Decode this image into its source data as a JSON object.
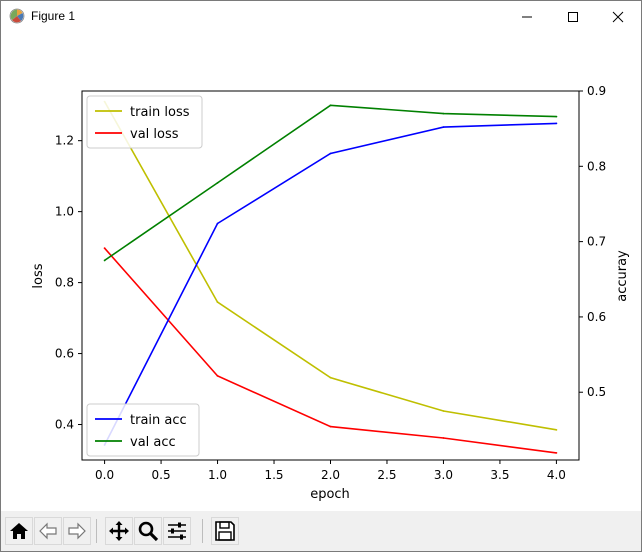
{
  "window": {
    "title": "Figure 1",
    "controls": [
      "minimize",
      "maximize",
      "close"
    ]
  },
  "toolbar": {
    "buttons": [
      {
        "name": "home",
        "icon": "home-icon"
      },
      {
        "name": "back",
        "icon": "back-arrow-icon"
      },
      {
        "name": "forward",
        "icon": "forward-arrow-icon"
      },
      {
        "name": "pan",
        "icon": "move-icon"
      },
      {
        "name": "zoom",
        "icon": "zoom-icon"
      },
      {
        "name": "configure-subplots",
        "icon": "sliders-icon"
      },
      {
        "name": "save",
        "icon": "save-icon"
      }
    ]
  },
  "chart_data": {
    "type": "line",
    "title": "",
    "xlabel": "epoch",
    "ylabel": "loss",
    "y2label": "accuray",
    "x": [
      0,
      1,
      2,
      3,
      4
    ],
    "xticks": [
      "0.0",
      "0.5",
      "1.0",
      "1.5",
      "2.0",
      "2.5",
      "3.0",
      "3.5",
      "4.0"
    ],
    "xlim": [
      -0.2,
      4.2
    ],
    "ylim": [
      0.3,
      1.34
    ],
    "yticks": [
      "0.4",
      "0.6",
      "0.8",
      "1.0",
      "1.2"
    ],
    "y2lim": [
      0.41,
      0.9
    ],
    "y2ticks": [
      "0.5",
      "0.6",
      "0.7",
      "0.8",
      "0.9"
    ],
    "series_left": [
      {
        "name": "train loss",
        "color": "#bfbf00",
        "values": [
          1.31,
          0.745,
          0.532,
          0.438,
          0.385
        ]
      },
      {
        "name": "val loss",
        "color": "#ff0000",
        "values": [
          0.897,
          0.537,
          0.394,
          0.362,
          0.32
        ]
      }
    ],
    "series_right": [
      {
        "name": "train acc",
        "color": "#0000ff",
        "values": [
          0.43,
          0.724,
          0.817,
          0.852,
          0.857
        ]
      },
      {
        "name": "val acc",
        "color": "#008000",
        "values": [
          0.675,
          0.778,
          0.881,
          0.87,
          0.866
        ]
      }
    ],
    "legend_top": "top-left",
    "legend_bottom": "bottom-left"
  }
}
